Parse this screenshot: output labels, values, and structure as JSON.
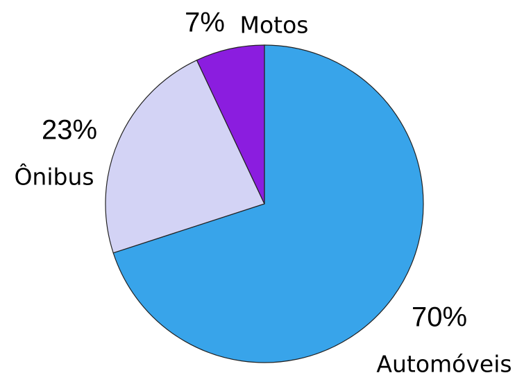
{
  "chart_data": {
    "type": "pie",
    "categories": [
      "Automóveis",
      "Ônibus",
      "Motos"
    ],
    "values": [
      70,
      23,
      7
    ],
    "value_labels": [
      "70%",
      "23%",
      "7%"
    ],
    "colors": [
      "#38a4ea",
      "#d3d3f5",
      "#8b1ddf"
    ]
  }
}
